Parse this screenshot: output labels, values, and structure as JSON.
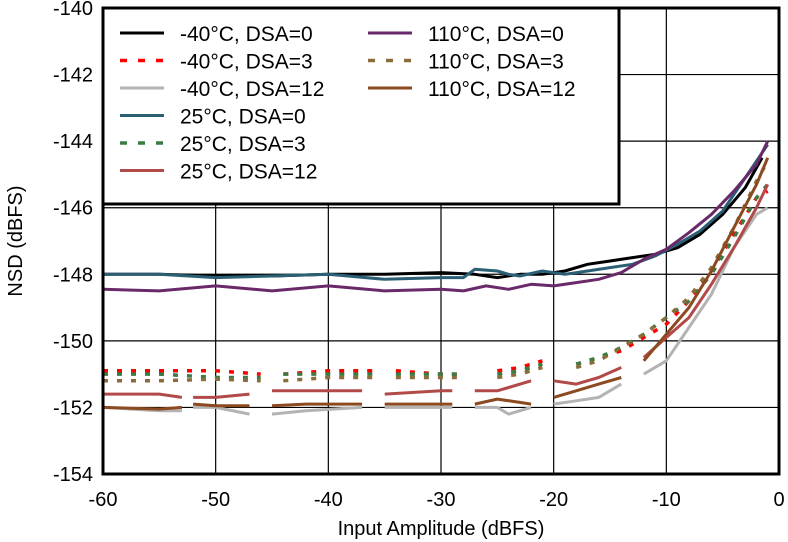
{
  "chart_data": {
    "type": "line",
    "xlabel": "Input Amplitude (dBFS)",
    "ylabel": "NSD (dBFS)",
    "xlim": [
      -60,
      0
    ],
    "ylim": [
      -154,
      -140
    ],
    "x_ticks": [
      "-60",
      "-50",
      "-40",
      "-30",
      "-20",
      "-10",
      "0"
    ],
    "y_ticks": [
      "-154",
      "-152",
      "-150",
      "-148",
      "-146",
      "-144",
      "-142",
      "-140"
    ],
    "grid": true,
    "legend_placement": "top-left",
    "series": [
      {
        "name": "-40°C, DSA=0",
        "color": "#000000",
        "dash": "solid",
        "segments": [
          [
            [
              -60,
              -148.0
            ],
            [
              -55,
              -148.0
            ],
            [
              -50,
              -148.05
            ],
            [
              -45,
              -148.05
            ],
            [
              -40,
              -148.0
            ],
            [
              -35,
              -148.0
            ],
            [
              -30,
              -147.95
            ],
            [
              -27,
              -148.0
            ],
            [
              -25,
              -148.1
            ],
            [
              -23,
              -148.0
            ],
            [
              -21,
              -148.0
            ],
            [
              -19,
              -147.9
            ],
            [
              -17,
              -147.7
            ],
            [
              -15,
              -147.6
            ],
            [
              -13,
              -147.5
            ],
            [
              -11,
              -147.4
            ],
            [
              -9,
              -147.2
            ],
            [
              -7,
              -146.8
            ],
            [
              -5,
              -146.2
            ],
            [
              -3,
              -145.4
            ],
            [
              -1.5,
              -144.5
            ]
          ]
        ]
      },
      {
        "name": "-40°C, DSA=3",
        "color": "#ff0000",
        "dash": "dotted",
        "segments": [
          [
            [
              -60,
              -150.9
            ],
            [
              -55,
              -150.9
            ],
            [
              -50,
              -150.9
            ],
            [
              -46,
              -151.0
            ]
          ],
          [
            [
              -44,
              -151.0
            ],
            [
              -40,
              -150.9
            ],
            [
              -36,
              -150.9
            ]
          ],
          [
            [
              -34,
              -150.9
            ],
            [
              -30,
              -151.0
            ],
            [
              -28,
              -151.0
            ]
          ],
          [
            [
              -25,
              -150.9
            ],
            [
              -23,
              -150.8
            ],
            [
              -21,
              -150.6
            ]
          ],
          [
            [
              -18,
              -150.7
            ],
            [
              -16,
              -150.5
            ],
            [
              -14,
              -150.3
            ],
            [
              -12,
              -149.9
            ],
            [
              -10,
              -149.5
            ],
            [
              -8,
              -148.8
            ],
            [
              -6,
              -147.9
            ],
            [
              -4,
              -146.8
            ],
            [
              -2,
              -145.7
            ],
            [
              -1,
              -145.5
            ]
          ]
        ]
      },
      {
        "name": "-40°C, DSA=12",
        "color": "#b3b3b3",
        "dash": "solid",
        "segments": [
          [
            [
              -60,
              -152.0
            ],
            [
              -55,
              -152.1
            ],
            [
              -53,
              -152.1
            ]
          ],
          [
            [
              -52,
              -152.0
            ],
            [
              -50,
              -152.0
            ],
            [
              -47,
              -152.2
            ]
          ],
          [
            [
              -45,
              -152.2
            ],
            [
              -42,
              -152.1
            ],
            [
              -37,
              -152.0
            ]
          ],
          [
            [
              -35,
              -152.0
            ],
            [
              -30,
              -152.0
            ],
            [
              -29,
              -152.0
            ]
          ],
          [
            [
              -27,
              -152.0
            ],
            [
              -25,
              -152.0
            ],
            [
              -24,
              -152.2
            ],
            [
              -22,
              -152.0
            ]
          ],
          [
            [
              -20,
              -151.9
            ],
            [
              -18,
              -151.8
            ],
            [
              -16,
              -151.7
            ],
            [
              -14,
              -151.3
            ]
          ],
          [
            [
              -12,
              -151.0
            ],
            [
              -10,
              -150.6
            ],
            [
              -8,
              -149.6
            ],
            [
              -6,
              -148.6
            ],
            [
              -4,
              -147.2
            ],
            [
              -2,
              -146.2
            ],
            [
              -1,
              -146.0
            ]
          ]
        ]
      },
      {
        "name": "25°C, DSA=0",
        "color": "#2b5f75",
        "dash": "solid",
        "segments": [
          [
            [
              -60,
              -148.0
            ],
            [
              -55,
              -148.0
            ],
            [
              -50,
              -148.1
            ],
            [
              -45,
              -148.05
            ],
            [
              -40,
              -148.0
            ],
            [
              -35,
              -148.15
            ],
            [
              -30,
              -148.1
            ],
            [
              -28,
              -148.1
            ],
            [
              -27,
              -147.85
            ],
            [
              -25,
              -147.9
            ],
            [
              -24,
              -148.0
            ],
            [
              -23,
              -148.05
            ],
            [
              -21,
              -147.9
            ],
            [
              -19,
              -148.0
            ],
            [
              -17,
              -147.9
            ],
            [
              -15,
              -147.8
            ],
            [
              -13,
              -147.7
            ],
            [
              -11,
              -147.45
            ],
            [
              -9,
              -147.1
            ],
            [
              -7,
              -146.7
            ],
            [
              -5,
              -146.1
            ],
            [
              -3,
              -145.1
            ],
            [
              -1,
              -144.1
            ]
          ]
        ]
      },
      {
        "name": "25°C, DSA=3",
        "color": "#3a7d44",
        "dash": "dotted",
        "segments": [
          [
            [
              -60,
              -151.0
            ],
            [
              -55,
              -151.0
            ],
            [
              -50,
              -151.1
            ],
            [
              -46,
              -151.1
            ]
          ],
          [
            [
              -44,
              -151.0
            ],
            [
              -40,
              -151.0
            ],
            [
              -36,
              -151.0
            ]
          ],
          [
            [
              -34,
              -151.0
            ],
            [
              -30,
              -151.0
            ],
            [
              -28,
              -151.0
            ]
          ],
          [
            [
              -25,
              -151.0
            ],
            [
              -23,
              -150.9
            ],
            [
              -21,
              -150.7
            ]
          ],
          [
            [
              -18,
              -150.7
            ],
            [
              -16,
              -150.5
            ],
            [
              -14,
              -150.2
            ],
            [
              -12,
              -149.8
            ],
            [
              -10,
              -149.3
            ],
            [
              -8,
              -148.8
            ],
            [
              -6,
              -148.0
            ],
            [
              -4,
              -146.9
            ],
            [
              -2,
              -145.7
            ],
            [
              -1,
              -145.3
            ]
          ]
        ]
      },
      {
        "name": "25°C, DSA=12",
        "color": "#b24a4a",
        "dash": "solid",
        "segments": [
          [
            [
              -60,
              -151.6
            ],
            [
              -55,
              -151.6
            ],
            [
              -53,
              -151.7
            ]
          ],
          [
            [
              -52,
              -151.7
            ],
            [
              -50,
              -151.7
            ],
            [
              -47,
              -151.6
            ]
          ],
          [
            [
              -45,
              -151.5
            ],
            [
              -42,
              -151.5
            ],
            [
              -37,
              -151.5
            ]
          ],
          [
            [
              -35,
              -151.6
            ],
            [
              -30,
              -151.5
            ],
            [
              -29,
              -151.5
            ]
          ],
          [
            [
              -27,
              -151.5
            ],
            [
              -25,
              -151.5
            ],
            [
              -24,
              -151.4
            ],
            [
              -22,
              -151.2
            ]
          ],
          [
            [
              -20,
              -151.2
            ],
            [
              -18,
              -151.3
            ],
            [
              -16,
              -151.1
            ],
            [
              -14,
              -150.8
            ]
          ],
          [
            [
              -12,
              -150.5
            ],
            [
              -10,
              -149.9
            ],
            [
              -8,
              -149.3
            ],
            [
              -6,
              -148.3
            ],
            [
              -4,
              -147.2
            ],
            [
              -2,
              -146.0
            ],
            [
              -1,
              -145.3
            ]
          ]
        ]
      },
      {
        "name": "110°C, DSA=0",
        "color": "#6a2a6a",
        "dash": "solid",
        "segments": [
          [
            [
              -60,
              -148.45
            ],
            [
              -55,
              -148.5
            ],
            [
              -50,
              -148.35
            ],
            [
              -45,
              -148.5
            ],
            [
              -40,
              -148.35
            ],
            [
              -35,
              -148.5
            ],
            [
              -30,
              -148.45
            ],
            [
              -28,
              -148.5
            ],
            [
              -26,
              -148.35
            ],
            [
              -24,
              -148.45
            ],
            [
              -22,
              -148.3
            ],
            [
              -20,
              -148.35
            ],
            [
              -18,
              -148.25
            ],
            [
              -16,
              -148.15
            ],
            [
              -14,
              -147.95
            ],
            [
              -12,
              -147.55
            ],
            [
              -10,
              -147.25
            ],
            [
              -8,
              -146.75
            ],
            [
              -6,
              -146.2
            ],
            [
              -4,
              -145.5
            ],
            [
              -2,
              -144.7
            ],
            [
              -1,
              -144.0
            ]
          ]
        ]
      },
      {
        "name": "110°C, DSA=3",
        "color": "#8a6d3b",
        "dash": "dotted",
        "segments": [
          [
            [
              -60,
              -151.2
            ],
            [
              -55,
              -151.2
            ],
            [
              -50,
              -151.15
            ],
            [
              -46,
              -151.2
            ]
          ],
          [
            [
              -44,
              -151.2
            ],
            [
              -40,
              -151.1
            ],
            [
              -36,
              -151.1
            ]
          ],
          [
            [
              -34,
              -151.1
            ],
            [
              -30,
              -151.1
            ],
            [
              -28,
              -151.1
            ]
          ],
          [
            [
              -25,
              -151.1
            ],
            [
              -23,
              -151.0
            ],
            [
              -21,
              -150.8
            ]
          ],
          [
            [
              -18,
              -150.8
            ],
            [
              -16,
              -150.6
            ],
            [
              -14,
              -150.2
            ],
            [
              -12,
              -149.8
            ],
            [
              -10,
              -149.3
            ],
            [
              -8,
              -148.7
            ],
            [
              -6,
              -147.8
            ],
            [
              -4,
              -146.6
            ],
            [
              -2,
              -145.2
            ],
            [
              -1,
              -144.6
            ]
          ]
        ]
      },
      {
        "name": "110°C, DSA=12",
        "color": "#8b4a1f",
        "dash": "solid",
        "segments": [
          [
            [
              -60,
              -152.0
            ],
            [
              -55,
              -152.05
            ],
            [
              -53,
              -152.0
            ]
          ],
          [
            [
              -52,
              -151.9
            ],
            [
              -50,
              -151.95
            ],
            [
              -47,
              -151.95
            ]
          ],
          [
            [
              -45,
              -151.95
            ],
            [
              -42,
              -151.9
            ],
            [
              -37,
              -151.9
            ]
          ],
          [
            [
              -35,
              -151.9
            ],
            [
              -30,
              -151.9
            ],
            [
              -29,
              -151.9
            ]
          ],
          [
            [
              -27,
              -151.9
            ],
            [
              -25,
              -151.75
            ],
            [
              -23,
              -151.85
            ],
            [
              -22,
              -151.9
            ]
          ],
          [
            [
              -20,
              -151.7
            ],
            [
              -18,
              -151.5
            ],
            [
              -16,
              -151.3
            ],
            [
              -14,
              -151.1
            ]
          ],
          [
            [
              -12,
              -150.6
            ],
            [
              -10,
              -149.8
            ],
            [
              -8,
              -149.0
            ],
            [
              -6,
              -147.9
            ],
            [
              -4,
              -146.6
            ],
            [
              -2,
              -145.3
            ],
            [
              -1,
              -144.5
            ]
          ]
        ]
      }
    ]
  }
}
